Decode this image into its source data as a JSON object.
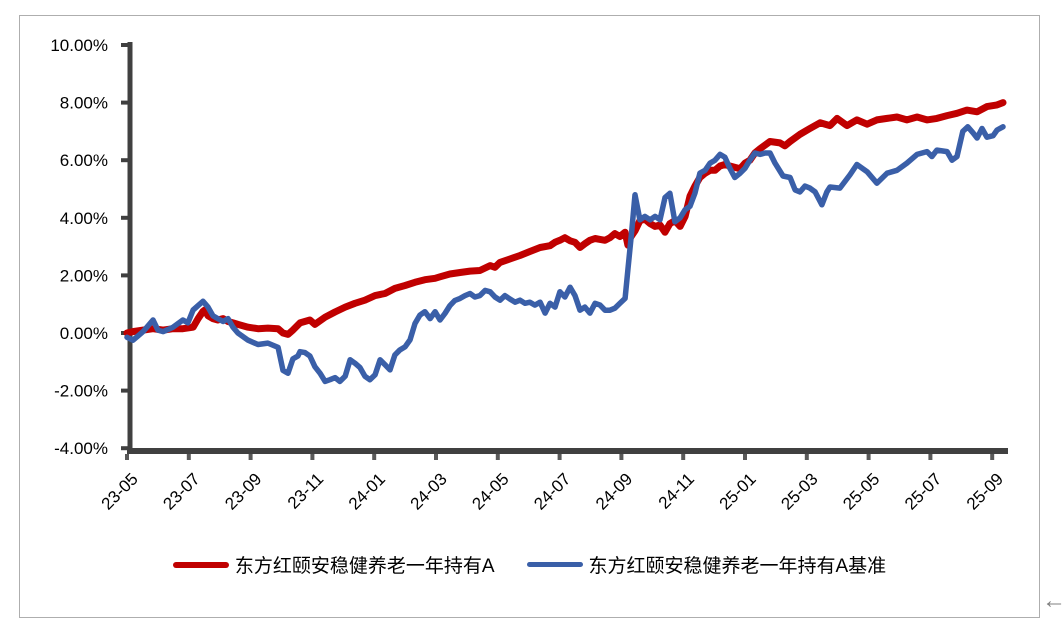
{
  "chart_data": {
    "type": "line",
    "title": "",
    "grid": false,
    "legend_position": "bottom",
    "x_axis": {
      "unit": "YY-MM (t in series points = months since 2023-05)",
      "tick_labels": [
        "23-05",
        "23-07",
        "23-09",
        "23-11",
        "24-01",
        "24-03",
        "24-05",
        "24-07",
        "24-09",
        "24-11",
        "25-01",
        "25-03",
        "25-05",
        "25-07",
        "25-09"
      ]
    },
    "y_axis": {
      "min": -4,
      "max": 10,
      "format": "percent",
      "tick_labels": [
        "10.00%",
        "8.00%",
        "6.00%",
        "4.00%",
        "2.00%",
        "0.00%",
        "-2.00%",
        "-4.00%"
      ]
    },
    "series": [
      {
        "name": "东方红颐安稳健养老一年持有A",
        "color": "#C00000",
        "stroke_width": 7,
        "points": [
          [
            0,
            0
          ],
          [
            0.19,
            0.05
          ],
          [
            0.52,
            0.1
          ],
          [
            0.84,
            0.15
          ],
          [
            1.17,
            0.1
          ],
          [
            1.49,
            0.15
          ],
          [
            1.81,
            0.15
          ],
          [
            2.14,
            0.2
          ],
          [
            2.3,
            0.5
          ],
          [
            2.46,
            0.75
          ],
          [
            2.52,
            0.8
          ],
          [
            2.62,
            0.6
          ],
          [
            2.78,
            0.5
          ],
          [
            2.94,
            0.45
          ],
          [
            3.11,
            0.5
          ],
          [
            3.27,
            0.4
          ],
          [
            3.43,
            0.35
          ],
          [
            3.59,
            0.3
          ],
          [
            3.92,
            0.2
          ],
          [
            4.24,
            0.15
          ],
          [
            4.56,
            0.17
          ],
          [
            4.89,
            0.15
          ],
          [
            5.05,
            0.0
          ],
          [
            5.21,
            -0.05
          ],
          [
            5.37,
            0.1
          ],
          [
            5.6,
            0.35
          ],
          [
            5.92,
            0.45
          ],
          [
            6.08,
            0.3
          ],
          [
            6.41,
            0.55
          ],
          [
            6.73,
            0.73
          ],
          [
            7.06,
            0.9
          ],
          [
            7.38,
            1.03
          ],
          [
            7.7,
            1.14
          ],
          [
            8.03,
            1.3
          ],
          [
            8.35,
            1.37
          ],
          [
            8.67,
            1.55
          ],
          [
            9.0,
            1.65
          ],
          [
            9.32,
            1.76
          ],
          [
            9.64,
            1.85
          ],
          [
            9.97,
            1.9
          ],
          [
            10.13,
            1.95
          ],
          [
            10.45,
            2.05
          ],
          [
            10.78,
            2.1
          ],
          [
            11.1,
            2.15
          ],
          [
            11.42,
            2.17
          ],
          [
            11.75,
            2.34
          ],
          [
            11.91,
            2.28
          ],
          [
            12.07,
            2.45
          ],
          [
            12.39,
            2.57
          ],
          [
            12.72,
            2.69
          ],
          [
            13.04,
            2.83
          ],
          [
            13.37,
            2.97
          ],
          [
            13.69,
            3.03
          ],
          [
            13.85,
            3.15
          ],
          [
            14.01,
            3.22
          ],
          [
            14.17,
            3.31
          ],
          [
            14.34,
            3.2
          ],
          [
            14.5,
            3.15
          ],
          [
            14.66,
            2.97
          ],
          [
            14.82,
            3.1
          ],
          [
            14.98,
            3.22
          ],
          [
            15.15,
            3.28
          ],
          [
            15.31,
            3.25
          ],
          [
            15.47,
            3.22
          ],
          [
            15.63,
            3.31
          ],
          [
            15.79,
            3.45
          ],
          [
            15.95,
            3.35
          ],
          [
            16.12,
            3.5
          ],
          [
            16.21,
            3.05
          ],
          [
            16.28,
            3.3
          ],
          [
            16.44,
            3.55
          ],
          [
            16.6,
            3.9
          ],
          [
            16.76,
            3.95
          ],
          [
            16.93,
            3.8
          ],
          [
            17.09,
            3.7
          ],
          [
            17.25,
            3.75
          ],
          [
            17.41,
            3.5
          ],
          [
            17.57,
            3.8
          ],
          [
            17.73,
            3.9
          ],
          [
            17.9,
            3.7
          ],
          [
            18.06,
            4.05
          ],
          [
            18.22,
            4.75
          ],
          [
            18.38,
            5.1
          ],
          [
            18.54,
            5.4
          ],
          [
            18.71,
            5.55
          ],
          [
            18.87,
            5.65
          ],
          [
            19.03,
            5.65
          ],
          [
            19.19,
            5.8
          ],
          [
            19.35,
            5.85
          ],
          [
            19.51,
            5.8
          ],
          [
            19.84,
            5.7
          ],
          [
            20.0,
            5.9
          ],
          [
            20.16,
            6.0
          ],
          [
            20.32,
            6.25
          ],
          [
            20.49,
            6.4
          ],
          [
            20.81,
            6.65
          ],
          [
            21.13,
            6.6
          ],
          [
            21.29,
            6.5
          ],
          [
            21.46,
            6.65
          ],
          [
            21.78,
            6.9
          ],
          [
            22.1,
            7.1
          ],
          [
            22.43,
            7.3
          ],
          [
            22.75,
            7.2
          ],
          [
            22.98,
            7.45
          ],
          [
            23.3,
            7.2
          ],
          [
            23.62,
            7.4
          ],
          [
            23.95,
            7.25
          ],
          [
            24.27,
            7.4
          ],
          [
            24.6,
            7.45
          ],
          [
            24.92,
            7.5
          ],
          [
            25.24,
            7.4
          ],
          [
            25.57,
            7.5
          ],
          [
            25.89,
            7.4
          ],
          [
            26.21,
            7.45
          ],
          [
            26.54,
            7.55
          ],
          [
            26.86,
            7.63
          ],
          [
            27.18,
            7.74
          ],
          [
            27.51,
            7.68
          ],
          [
            27.83,
            7.86
          ],
          [
            28.16,
            7.92
          ],
          [
            28.35,
            8.0
          ]
        ]
      },
      {
        "name": "东方红颐安稳健养老一年持有A基准",
        "color": "#3A5FA8",
        "stroke_width": 5.5,
        "points": [
          [
            0,
            -0.15
          ],
          [
            0.19,
            -0.25
          ],
          [
            0.36,
            -0.1
          ],
          [
            0.52,
            0.05
          ],
          [
            0.84,
            0.45
          ],
          [
            1.0,
            0.1
          ],
          [
            1.17,
            0.05
          ],
          [
            1.49,
            0.2
          ],
          [
            1.81,
            0.45
          ],
          [
            1.97,
            0.35
          ],
          [
            2.14,
            0.8
          ],
          [
            2.3,
            0.95
          ],
          [
            2.46,
            1.1
          ],
          [
            2.62,
            0.9
          ],
          [
            2.78,
            0.6
          ],
          [
            2.94,
            0.5
          ],
          [
            3.11,
            0.4
          ],
          [
            3.27,
            0.5
          ],
          [
            3.43,
            0.2
          ],
          [
            3.59,
            0.0
          ],
          [
            3.92,
            -0.25
          ],
          [
            4.24,
            -0.4
          ],
          [
            4.56,
            -0.35
          ],
          [
            4.89,
            -0.5
          ],
          [
            5.05,
            -1.3
          ],
          [
            5.21,
            -1.4
          ],
          [
            5.37,
            -0.9
          ],
          [
            5.53,
            -0.8
          ],
          [
            5.6,
            -0.65
          ],
          [
            5.76,
            -0.68
          ],
          [
            5.92,
            -0.8
          ],
          [
            6.08,
            -1.17
          ],
          [
            6.25,
            -1.4
          ],
          [
            6.41,
            -1.68
          ],
          [
            6.57,
            -1.62
          ],
          [
            6.73,
            -1.55
          ],
          [
            6.89,
            -1.68
          ],
          [
            7.06,
            -1.5
          ],
          [
            7.22,
            -0.93
          ],
          [
            7.38,
            -1.05
          ],
          [
            7.54,
            -1.2
          ],
          [
            7.7,
            -1.5
          ],
          [
            7.86,
            -1.62
          ],
          [
            8.03,
            -1.45
          ],
          [
            8.19,
            -0.93
          ],
          [
            8.35,
            -1.1
          ],
          [
            8.51,
            -1.28
          ],
          [
            8.67,
            -0.76
          ],
          [
            8.83,
            -0.59
          ],
          [
            9.0,
            -0.48
          ],
          [
            9.16,
            -0.24
          ],
          [
            9.32,
            0.33
          ],
          [
            9.48,
            0.62
          ],
          [
            9.64,
            0.74
          ],
          [
            9.81,
            0.5
          ],
          [
            9.97,
            0.74
          ],
          [
            10.13,
            0.45
          ],
          [
            10.29,
            0.68
          ],
          [
            10.45,
            0.95
          ],
          [
            10.61,
            1.13
          ],
          [
            10.78,
            1.2
          ],
          [
            10.94,
            1.3
          ],
          [
            11.1,
            1.37
          ],
          [
            11.26,
            1.25
          ],
          [
            11.42,
            1.3
          ],
          [
            11.59,
            1.48
          ],
          [
            11.75,
            1.43
          ],
          [
            11.91,
            1.25
          ],
          [
            12.07,
            1.14
          ],
          [
            12.23,
            1.3
          ],
          [
            12.39,
            1.18
          ],
          [
            12.56,
            1.07
          ],
          [
            12.72,
            1.14
          ],
          [
            12.88,
            1.03
          ],
          [
            13.04,
            1.07
          ],
          [
            13.2,
            0.97
          ],
          [
            13.37,
            1.07
          ],
          [
            13.53,
            0.69
          ],
          [
            13.69,
            1.03
          ],
          [
            13.85,
            0.9
          ],
          [
            14.01,
            1.43
          ],
          [
            14.17,
            1.25
          ],
          [
            14.34,
            1.59
          ],
          [
            14.5,
            1.3
          ],
          [
            14.66,
            0.79
          ],
          [
            14.82,
            0.9
          ],
          [
            14.98,
            0.69
          ],
          [
            15.15,
            1.03
          ],
          [
            15.31,
            0.97
          ],
          [
            15.47,
            0.79
          ],
          [
            15.63,
            0.79
          ],
          [
            15.79,
            0.86
          ],
          [
            15.95,
            1.03
          ],
          [
            16.12,
            1.2
          ],
          [
            16.21,
            2.2
          ],
          [
            16.34,
            3.6
          ],
          [
            16.44,
            4.8
          ],
          [
            16.6,
            3.93
          ],
          [
            16.76,
            4.05
          ],
          [
            16.93,
            3.93
          ],
          [
            17.09,
            4.05
          ],
          [
            17.25,
            3.93
          ],
          [
            17.41,
            4.7
          ],
          [
            17.57,
            4.85
          ],
          [
            17.73,
            3.86
          ],
          [
            17.9,
            4.0
          ],
          [
            18.06,
            4.28
          ],
          [
            18.22,
            4.4
          ],
          [
            18.38,
            4.85
          ],
          [
            18.54,
            5.55
          ],
          [
            18.71,
            5.65
          ],
          [
            18.87,
            5.9
          ],
          [
            19.03,
            6.0
          ],
          [
            19.19,
            6.2
          ],
          [
            19.35,
            6.1
          ],
          [
            19.51,
            5.72
          ],
          [
            19.67,
            5.4
          ],
          [
            19.84,
            5.55
          ],
          [
            20.0,
            5.72
          ],
          [
            20.16,
            6.0
          ],
          [
            20.32,
            6.25
          ],
          [
            20.49,
            6.2
          ],
          [
            20.65,
            6.25
          ],
          [
            20.81,
            6.25
          ],
          [
            20.97,
            5.9
          ],
          [
            21.23,
            5.45
          ],
          [
            21.46,
            5.4
          ],
          [
            21.62,
            4.97
          ],
          [
            21.78,
            4.9
          ],
          [
            21.94,
            5.1
          ],
          [
            22.1,
            5.03
          ],
          [
            22.27,
            4.9
          ],
          [
            22.49,
            4.45
          ],
          [
            22.65,
            4.9
          ],
          [
            22.75,
            5.07
          ],
          [
            23.07,
            5.03
          ],
          [
            23.4,
            5.5
          ],
          [
            23.62,
            5.85
          ],
          [
            23.95,
            5.6
          ],
          [
            24.27,
            5.2
          ],
          [
            24.6,
            5.55
          ],
          [
            24.92,
            5.65
          ],
          [
            25.24,
            5.9
          ],
          [
            25.57,
            6.2
          ],
          [
            25.89,
            6.3
          ],
          [
            26.05,
            6.13
          ],
          [
            26.21,
            6.35
          ],
          [
            26.54,
            6.3
          ],
          [
            26.7,
            6.0
          ],
          [
            26.86,
            6.13
          ],
          [
            27.05,
            7.0
          ],
          [
            27.21,
            7.16
          ],
          [
            27.38,
            6.95
          ],
          [
            27.51,
            6.77
          ],
          [
            27.67,
            7.1
          ],
          [
            27.83,
            6.8
          ],
          [
            28.03,
            6.85
          ],
          [
            28.16,
            7.05
          ],
          [
            28.35,
            7.16
          ]
        ]
      }
    ]
  },
  "legend": {
    "items": [
      {
        "label": "东方红颐安稳健养老一年持有A",
        "color": "#C00000"
      },
      {
        "label": "东方红颐安稳健养老一年持有A基准",
        "color": "#3A5FA8"
      }
    ]
  },
  "decorations": {
    "scroll_arrow": "←"
  },
  "colors": {
    "axis": "#404040",
    "tick": "#595959",
    "frame_border": "#aeaeae",
    "label_text": "#000000"
  }
}
